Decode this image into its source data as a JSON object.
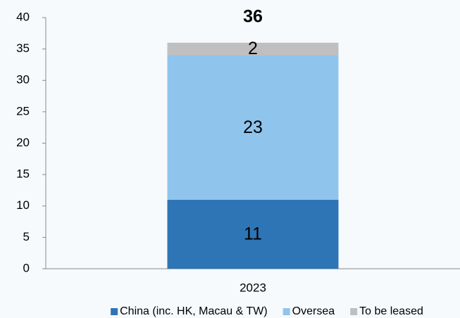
{
  "chart_data": {
    "type": "stacked_bar",
    "categories": [
      "2023"
    ],
    "series": [
      {
        "name": "China (inc. HK, Macau & TW)",
        "color": "#2e75b6",
        "values": [
          11
        ]
      },
      {
        "name": "Oversea",
        "color": "#8fc4ec",
        "values": [
          23
        ]
      },
      {
        "name": "To be leased",
        "color": "#bfbfbf",
        "values": [
          2
        ]
      }
    ],
    "totals": [
      36
    ],
    "ylim": [
      0,
      40
    ],
    "yticks": [
      0,
      5,
      10,
      15,
      20,
      25,
      30,
      35,
      40
    ],
    "grid": false,
    "legend": "bottom"
  }
}
